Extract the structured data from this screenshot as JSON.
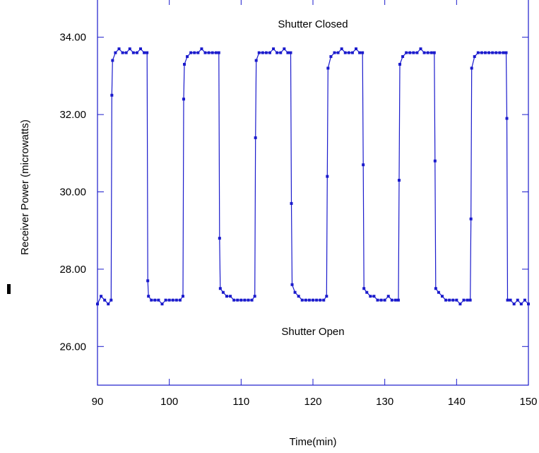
{
  "chart_data": {
    "type": "line",
    "title": "",
    "xlabel": "Time(min)",
    "ylabel": "Receiver Power (microwatts)",
    "xlim": [
      90,
      150
    ],
    "ylim": [
      25,
      35
    ],
    "x_ticks": [
      90,
      100,
      110,
      120,
      130,
      140,
      150
    ],
    "x_tick_labels": [
      "90",
      "100",
      "110",
      "120",
      "130",
      "140",
      "150"
    ],
    "y_ticks": [
      26,
      28,
      30,
      32,
      34
    ],
    "y_tick_labels": [
      "26.00",
      "28.00",
      "30.00",
      "32.00",
      "34.00"
    ],
    "grid": false,
    "legend": "none",
    "colors": {
      "series": "#1a1acc",
      "axis": "#1a1acc"
    },
    "annotations": [
      {
        "text": "Shutter Closed",
        "x": 120,
        "y": 34.25
      },
      {
        "text": "Shutter Open",
        "x": 120,
        "y": 26.3
      }
    ],
    "series": [
      {
        "marker": "square",
        "points": [
          [
            90.0,
            27.1
          ],
          [
            90.5,
            27.3
          ],
          [
            91.0,
            27.2
          ],
          [
            91.5,
            27.1
          ],
          [
            91.9,
            27.2
          ],
          [
            92.0,
            32.5
          ],
          [
            92.1,
            33.4
          ],
          [
            92.5,
            33.6
          ],
          [
            93.0,
            33.7
          ],
          [
            93.5,
            33.6
          ],
          [
            94.0,
            33.6
          ],
          [
            94.5,
            33.7
          ],
          [
            95.0,
            33.6
          ],
          [
            95.5,
            33.6
          ],
          [
            96.0,
            33.7
          ],
          [
            96.5,
            33.6
          ],
          [
            96.9,
            33.6
          ],
          [
            97.0,
            27.7
          ],
          [
            97.1,
            27.3
          ],
          [
            97.5,
            27.2
          ],
          [
            98.0,
            27.2
          ],
          [
            98.5,
            27.2
          ],
          [
            99.0,
            27.1
          ],
          [
            99.5,
            27.2
          ],
          [
            100.0,
            27.2
          ],
          [
            100.5,
            27.2
          ],
          [
            101.0,
            27.2
          ],
          [
            101.5,
            27.2
          ],
          [
            101.9,
            27.3
          ],
          [
            102.0,
            32.4
          ],
          [
            102.1,
            33.3
          ],
          [
            102.5,
            33.5
          ],
          [
            103.0,
            33.6
          ],
          [
            103.5,
            33.6
          ],
          [
            104.0,
            33.6
          ],
          [
            104.5,
            33.7
          ],
          [
            105.0,
            33.6
          ],
          [
            105.5,
            33.6
          ],
          [
            106.0,
            33.6
          ],
          [
            106.5,
            33.6
          ],
          [
            106.9,
            33.6
          ],
          [
            107.0,
            28.8
          ],
          [
            107.1,
            27.5
          ],
          [
            107.5,
            27.4
          ],
          [
            108.0,
            27.3
          ],
          [
            108.5,
            27.3
          ],
          [
            109.0,
            27.2
          ],
          [
            109.5,
            27.2
          ],
          [
            110.0,
            27.2
          ],
          [
            110.5,
            27.2
          ],
          [
            111.0,
            27.2
          ],
          [
            111.5,
            27.2
          ],
          [
            111.9,
            27.3
          ],
          [
            112.0,
            31.4
          ],
          [
            112.1,
            33.4
          ],
          [
            112.5,
            33.6
          ],
          [
            113.0,
            33.6
          ],
          [
            113.5,
            33.6
          ],
          [
            114.0,
            33.6
          ],
          [
            114.5,
            33.7
          ],
          [
            115.0,
            33.6
          ],
          [
            115.5,
            33.6
          ],
          [
            116.0,
            33.7
          ],
          [
            116.5,
            33.6
          ],
          [
            116.9,
            33.6
          ],
          [
            117.0,
            29.7
          ],
          [
            117.1,
            27.6
          ],
          [
            117.5,
            27.4
          ],
          [
            118.0,
            27.3
          ],
          [
            118.5,
            27.2
          ],
          [
            119.0,
            27.2
          ],
          [
            119.5,
            27.2
          ],
          [
            120.0,
            27.2
          ],
          [
            120.5,
            27.2
          ],
          [
            121.0,
            27.2
          ],
          [
            121.5,
            27.2
          ],
          [
            121.9,
            27.3
          ],
          [
            122.0,
            30.4
          ],
          [
            122.1,
            33.2
          ],
          [
            122.5,
            33.5
          ],
          [
            123.0,
            33.6
          ],
          [
            123.5,
            33.6
          ],
          [
            124.0,
            33.7
          ],
          [
            124.5,
            33.6
          ],
          [
            125.0,
            33.6
          ],
          [
            125.5,
            33.6
          ],
          [
            126.0,
            33.7
          ],
          [
            126.5,
            33.6
          ],
          [
            126.9,
            33.6
          ],
          [
            127.0,
            30.7
          ],
          [
            127.1,
            27.5
          ],
          [
            127.5,
            27.4
          ],
          [
            128.0,
            27.3
          ],
          [
            128.5,
            27.3
          ],
          [
            129.0,
            27.2
          ],
          [
            129.5,
            27.2
          ],
          [
            130.0,
            27.2
          ],
          [
            130.5,
            27.3
          ],
          [
            131.0,
            27.2
          ],
          [
            131.5,
            27.2
          ],
          [
            131.9,
            27.2
          ],
          [
            132.0,
            30.3
          ],
          [
            132.1,
            33.3
          ],
          [
            132.5,
            33.5
          ],
          [
            133.0,
            33.6
          ],
          [
            133.5,
            33.6
          ],
          [
            134.0,
            33.6
          ],
          [
            134.5,
            33.6
          ],
          [
            135.0,
            33.7
          ],
          [
            135.5,
            33.6
          ],
          [
            136.0,
            33.6
          ],
          [
            136.5,
            33.6
          ],
          [
            136.9,
            33.6
          ],
          [
            137.0,
            30.8
          ],
          [
            137.1,
            27.5
          ],
          [
            137.5,
            27.4
          ],
          [
            138.0,
            27.3
          ],
          [
            138.5,
            27.2
          ],
          [
            139.0,
            27.2
          ],
          [
            139.5,
            27.2
          ],
          [
            140.0,
            27.2
          ],
          [
            140.5,
            27.1
          ],
          [
            141.0,
            27.2
          ],
          [
            141.5,
            27.2
          ],
          [
            141.9,
            27.2
          ],
          [
            142.0,
            29.3
          ],
          [
            142.1,
            33.2
          ],
          [
            142.5,
            33.5
          ],
          [
            143.0,
            33.6
          ],
          [
            143.5,
            33.6
          ],
          [
            144.0,
            33.6
          ],
          [
            144.5,
            33.6
          ],
          [
            145.0,
            33.6
          ],
          [
            145.5,
            33.6
          ],
          [
            146.0,
            33.6
          ],
          [
            146.5,
            33.6
          ],
          [
            146.9,
            33.6
          ],
          [
            147.0,
            31.9
          ],
          [
            147.1,
            27.2
          ],
          [
            147.5,
            27.2
          ],
          [
            148.0,
            27.1
          ],
          [
            148.5,
            27.2
          ],
          [
            149.0,
            27.1
          ],
          [
            149.5,
            27.2
          ],
          [
            150.0,
            27.1
          ]
        ]
      }
    ]
  }
}
